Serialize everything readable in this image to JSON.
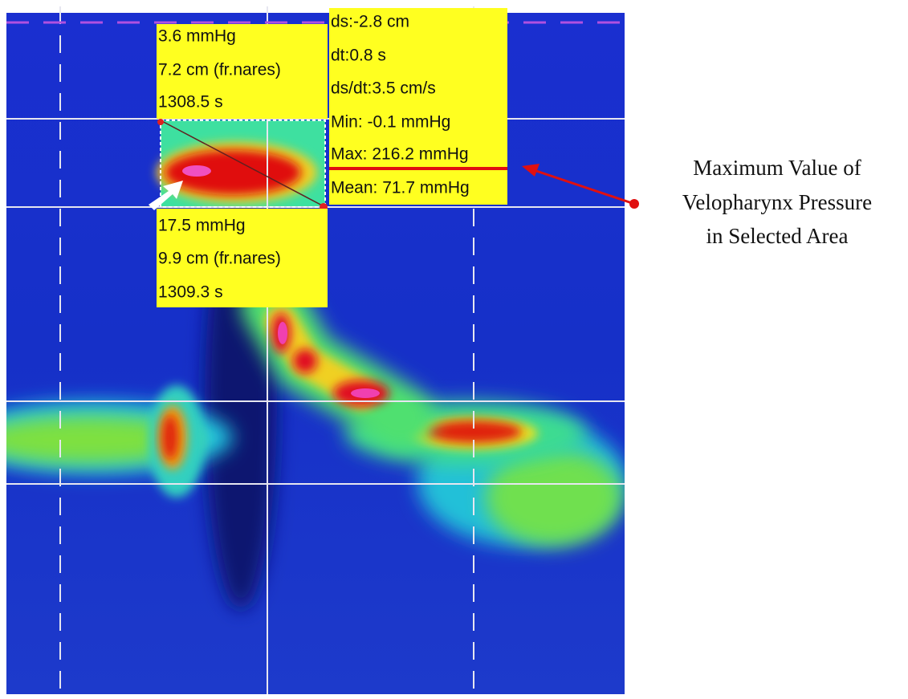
{
  "top_left_box": {
    "lines": [
      "3.6 mmHg",
      "7.2 cm (fr.nares)",
      "1308.5 s"
    ]
  },
  "stats_box": {
    "lines": [
      "ds:-2.8 cm",
      "dt:0.8 s",
      "ds/dt:3.5 cm/s",
      "Min: -0.1 mmHg",
      "Max: 216.2 mmHg",
      "Mean: 71.7 mmHg"
    ]
  },
  "bottom_box": {
    "lines": [
      "17.5 mmHg",
      "9.9 cm (fr.nares)",
      "1309.3 s"
    ]
  },
  "annotation": {
    "lines": [
      "Maximum Value of",
      "Velopharynx Pressure",
      "in Selected Area"
    ]
  }
}
